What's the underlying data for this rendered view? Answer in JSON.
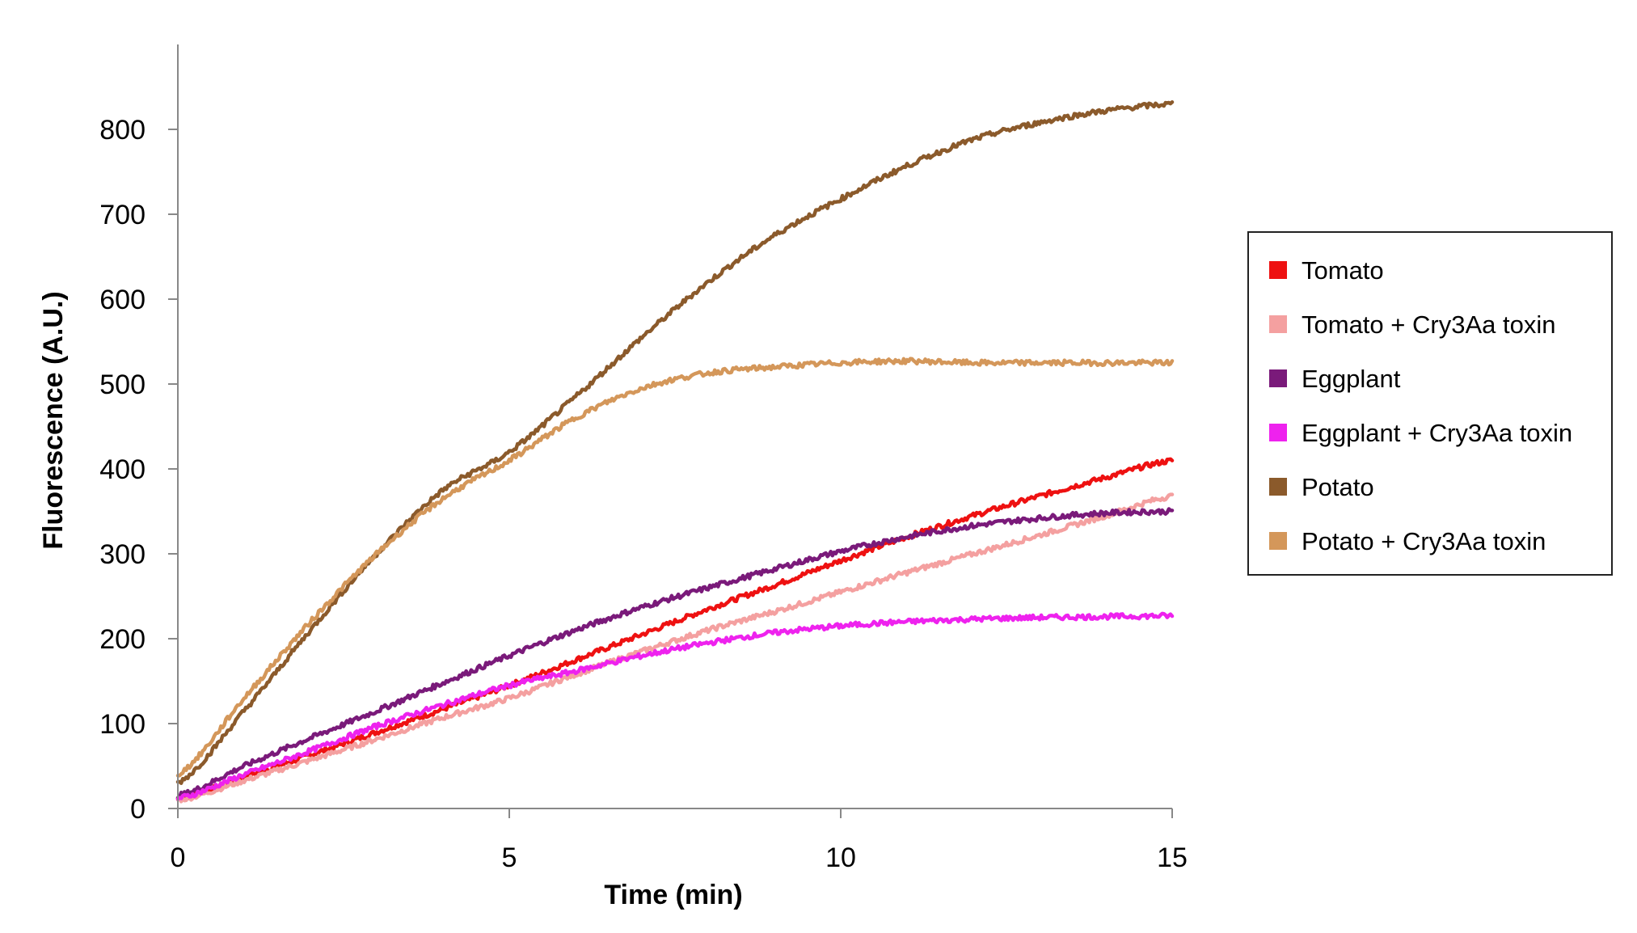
{
  "chart_data": {
    "type": "line",
    "title": "",
    "xlabel": "Time (min)",
    "ylabel": "Fluorescence  (A.U.)",
    "xlim": [
      0,
      15
    ],
    "ylim": [
      0,
      900
    ],
    "xticks": [
      0,
      5,
      10,
      15
    ],
    "yticks": [
      0,
      100,
      200,
      300,
      400,
      500,
      600,
      700,
      800
    ],
    "grid": false,
    "legend_position": "right",
    "series": [
      {
        "name": "Tomato",
        "color": "#ee1111",
        "x": [
          0,
          1,
          2,
          3,
          4,
          5,
          6,
          7,
          8,
          9,
          10,
          11,
          12,
          13,
          14,
          15
        ],
        "y": [
          12,
          37,
          63,
          90,
          117,
          145,
          175,
          205,
          235,
          263,
          292,
          320,
          345,
          368,
          390,
          410
        ]
      },
      {
        "name": "Tomato + Cry3Aa toxin",
        "color": "#f4a0a0",
        "x": [
          0,
          1,
          2,
          3,
          4,
          5,
          6,
          7,
          8,
          9,
          10,
          11,
          12,
          13,
          14,
          15
        ],
        "y": [
          10,
          33,
          57,
          82,
          107,
          130,
          158,
          185,
          210,
          232,
          255,
          278,
          300,
          322,
          345,
          368
        ]
      },
      {
        "name": "Eggplant",
        "color": "#7a1a7a",
        "x": [
          0,
          1,
          2,
          3,
          4,
          5,
          6,
          7,
          8,
          9,
          10,
          11,
          12,
          13,
          14,
          15
        ],
        "y": [
          15,
          50,
          83,
          115,
          148,
          180,
          210,
          237,
          260,
          282,
          303,
          320,
          333,
          342,
          348,
          350
        ]
      },
      {
        "name": "Eggplant + Cry3Aa toxin",
        "color": "#ee22ee",
        "x": [
          0,
          1,
          2,
          3,
          4,
          5,
          6,
          7,
          8,
          9,
          10,
          11,
          12,
          13,
          14,
          15
        ],
        "y": [
          12,
          40,
          68,
          97,
          122,
          145,
          162,
          180,
          195,
          207,
          215,
          220,
          223,
          225,
          226,
          227
        ]
      },
      {
        "name": "Potato",
        "color": "#8b5a2b",
        "x": [
          0,
          1,
          2,
          3,
          4,
          5,
          6,
          7,
          8,
          9,
          10,
          11,
          12,
          13,
          14,
          15
        ],
        "y": [
          30,
          115,
          210,
          300,
          375,
          420,
          485,
          555,
          620,
          675,
          718,
          757,
          788,
          808,
          822,
          830
        ]
      },
      {
        "name": "Potato + Cry3Aa toxin",
        "color": "#d4975a",
        "x": [
          0,
          1,
          2,
          3,
          4,
          5,
          6,
          7,
          8,
          9,
          10,
          11,
          12,
          13,
          14,
          15
        ],
        "y": [
          40,
          130,
          220,
          300,
          365,
          410,
          460,
          495,
          513,
          520,
          525,
          527,
          525,
          525,
          525,
          525
        ]
      }
    ]
  }
}
